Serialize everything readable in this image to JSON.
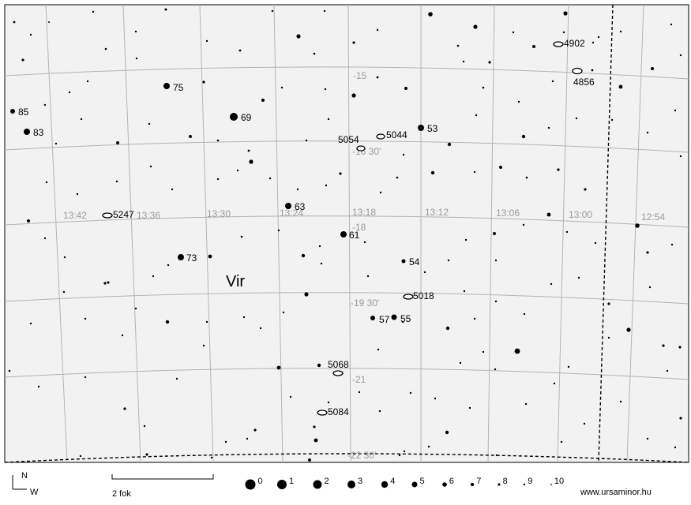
{
  "map": {
    "constellation": "Vir",
    "ra_labels": [
      "13:42",
      "13:36",
      "13:30",
      "13:24",
      "13:18",
      "13:12",
      "13:06",
      "13:00",
      "12:54"
    ],
    "dec_labels": [
      "-15",
      "-16 30'",
      "-18",
      "-19 30'",
      "-21",
      "-22 30'"
    ],
    "stars": [
      {
        "label": "75",
        "mag": 3
      },
      {
        "label": "69",
        "mag": 2
      },
      {
        "label": "85",
        "mag": 4
      },
      {
        "label": "83",
        "mag": 3
      },
      {
        "label": "53",
        "mag": 3
      },
      {
        "label": "63",
        "mag": 3
      },
      {
        "label": "61",
        "mag": 3
      },
      {
        "label": "73",
        "mag": 3
      },
      {
        "label": "54",
        "mag": 5
      },
      {
        "label": "57",
        "mag": 5
      },
      {
        "label": "55",
        "mag": 4
      }
    ],
    "galaxies": [
      "4902",
      "4856",
      "5054",
      "5044",
      "5247",
      "5018",
      "5068",
      "5084"
    ]
  },
  "legend": {
    "north": "N",
    "west": "W",
    "scale_label": "2 fok",
    "magnitudes": [
      "0",
      "1",
      "2",
      "3",
      "4",
      "5",
      "6",
      "7",
      "8",
      "9",
      "10"
    ],
    "website": "www.ursaminor.hu"
  }
}
